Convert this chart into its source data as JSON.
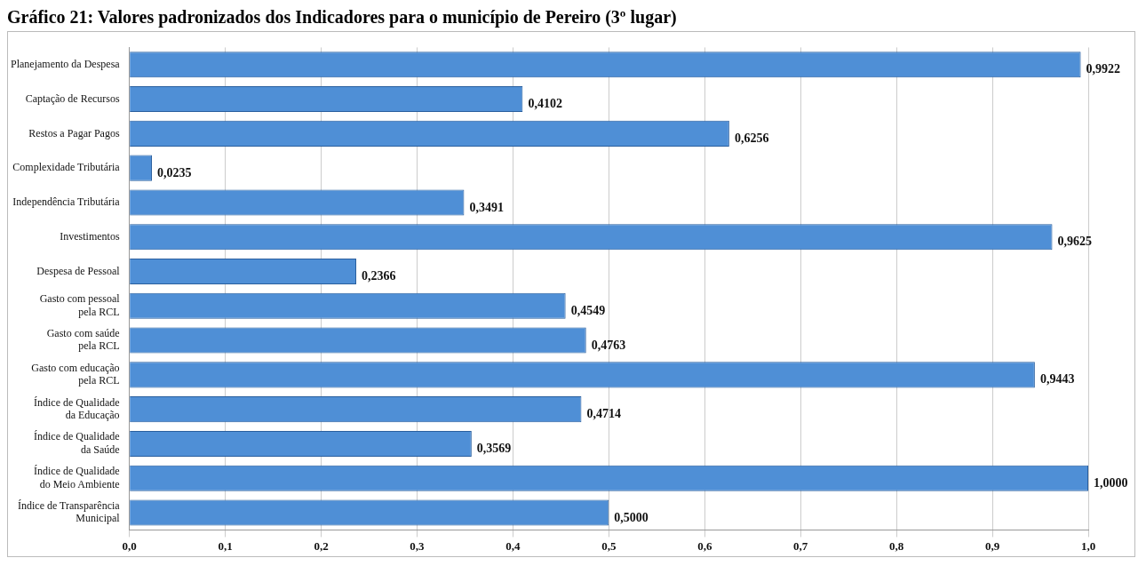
{
  "chart_data": {
    "type": "bar",
    "orientation": "horizontal",
    "title": "Gráfico 21: Valores padronizados dos Indicadores para o município de Pereiro (3º lugar)",
    "categories": [
      "Planejamento da Despesa",
      "Captação de Recursos",
      "Restos a Pagar Pagos",
      "Complexidade Tributária",
      "Independência Tributária",
      "Investimentos",
      "Despesa de Pessoal",
      "Gasto com pessoal\npela RCL",
      "Gasto com saúde\npela RCL",
      "Gasto com educação\npela RCL",
      "Índice de Qualidade\nda Educação",
      "Índice de Qualidade\nda Saúde",
      "Índice de Qualidade\ndo Meio Ambiente",
      "Índice de Transparência\nMunicipal"
    ],
    "values": [
      0.9922,
      0.4102,
      0.6256,
      0.0235,
      0.3491,
      0.9625,
      0.2366,
      0.4549,
      0.4763,
      0.9443,
      0.4714,
      0.3569,
      1.0,
      0.5
    ],
    "value_labels": [
      "0,9922",
      "0,4102",
      "0,6256",
      "0,0235",
      "0,3491",
      "0,9625",
      "0,2366",
      "0,4549",
      "0,4763",
      "0,9443",
      "0,4714",
      "0,3569",
      "1,0000",
      "0,5000"
    ],
    "color": "#4f8fd6",
    "xlim": [
      0,
      1
    ],
    "xticks": [
      {
        "value": 0,
        "label": "0,0"
      },
      {
        "value": 0.1,
        "label": "0,1"
      },
      {
        "value": 0.2,
        "label": "0,2"
      },
      {
        "value": 0.3,
        "label": "0,3"
      },
      {
        "value": 0.4,
        "label": "0,4"
      },
      {
        "value": 0.5,
        "label": "0,5"
      },
      {
        "value": 0.6,
        "label": "0,6"
      },
      {
        "value": 0.7,
        "label": "0,7"
      },
      {
        "value": 0.8,
        "label": "0,8"
      },
      {
        "value": 0.9,
        "label": "0,9"
      },
      {
        "value": 1,
        "label": "1,0"
      }
    ],
    "grid": "x",
    "legend": false
  }
}
